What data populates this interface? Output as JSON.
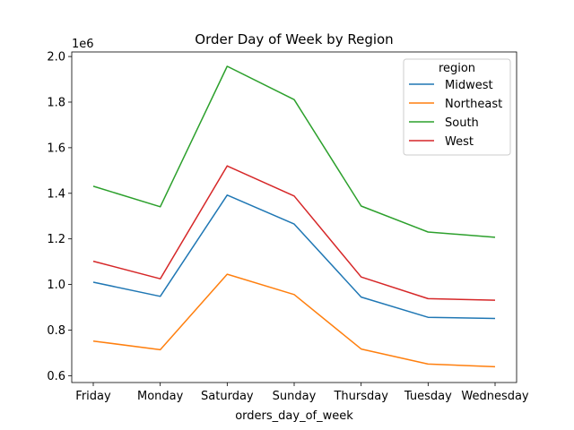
{
  "chart_data": {
    "type": "line",
    "title": "Order Day of Week by Region",
    "xlabel": "orders_day_of_week",
    "ylabel": "",
    "y_offset_label": "1e6",
    "categories": [
      "Friday",
      "Monday",
      "Saturday",
      "Sunday",
      "Thursday",
      "Tuesday",
      "Wednesday"
    ],
    "ylim": [
      0.57,
      2.02
    ],
    "y_ticks": [
      0.6,
      0.8,
      1.0,
      1.2,
      1.4,
      1.6,
      1.8,
      2.0
    ],
    "y_tick_labels": [
      "0.6",
      "0.8",
      "1.0",
      "1.2",
      "1.4",
      "1.6",
      "1.8",
      "2.0"
    ],
    "grid": false,
    "legend": {
      "title": "region",
      "position": "top-right"
    },
    "series": [
      {
        "name": "Midwest",
        "color": "#1f77b4",
        "values": [
          1.01,
          0.948,
          1.392,
          1.265,
          0.945,
          0.856,
          0.851
        ]
      },
      {
        "name": "Northeast",
        "color": "#ff7f0e",
        "values": [
          0.752,
          0.714,
          1.045,
          0.956,
          0.717,
          0.651,
          0.639
        ]
      },
      {
        "name": "South",
        "color": "#2ca02c",
        "values": [
          1.431,
          1.341,
          1.957,
          1.811,
          1.344,
          1.23,
          1.207
        ]
      },
      {
        "name": "West",
        "color": "#d62728",
        "values": [
          1.102,
          1.025,
          1.52,
          1.388,
          1.033,
          0.938,
          0.931
        ]
      }
    ]
  }
}
